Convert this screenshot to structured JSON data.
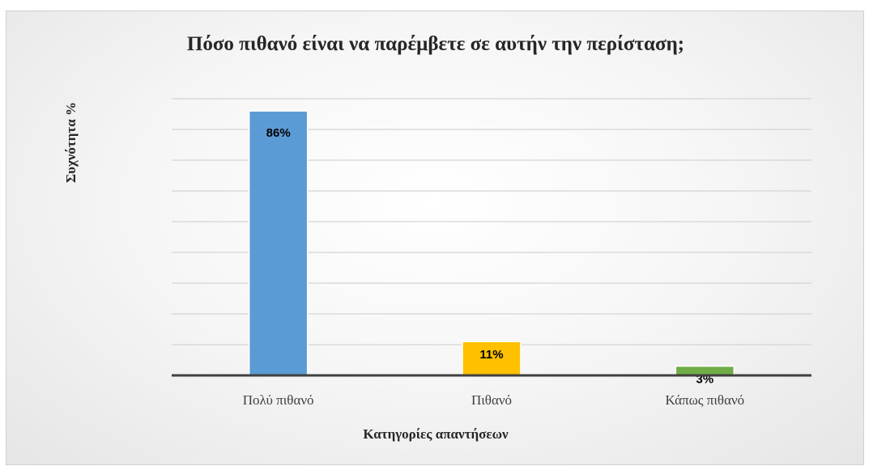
{
  "chart_data": {
    "type": "bar",
    "title": "Πόσο πιθανό είναι να παρέμβετε σε αυτήν την περίσταση;",
    "xlabel": "Κατηγορίες απαντήσεων",
    "ylabel": "Συχνότητα %",
    "categories": [
      "Πολύ πιθανό",
      "Πιθανό",
      "Κάπως πιθανό"
    ],
    "values": [
      86,
      11,
      3
    ],
    "data_labels": [
      "86%",
      "11%",
      "3%"
    ],
    "colors": [
      "#5b9bd5",
      "#ffc000",
      "#70ad47"
    ],
    "ylim": [
      0,
      90
    ],
    "grid": true,
    "legend": "none"
  }
}
